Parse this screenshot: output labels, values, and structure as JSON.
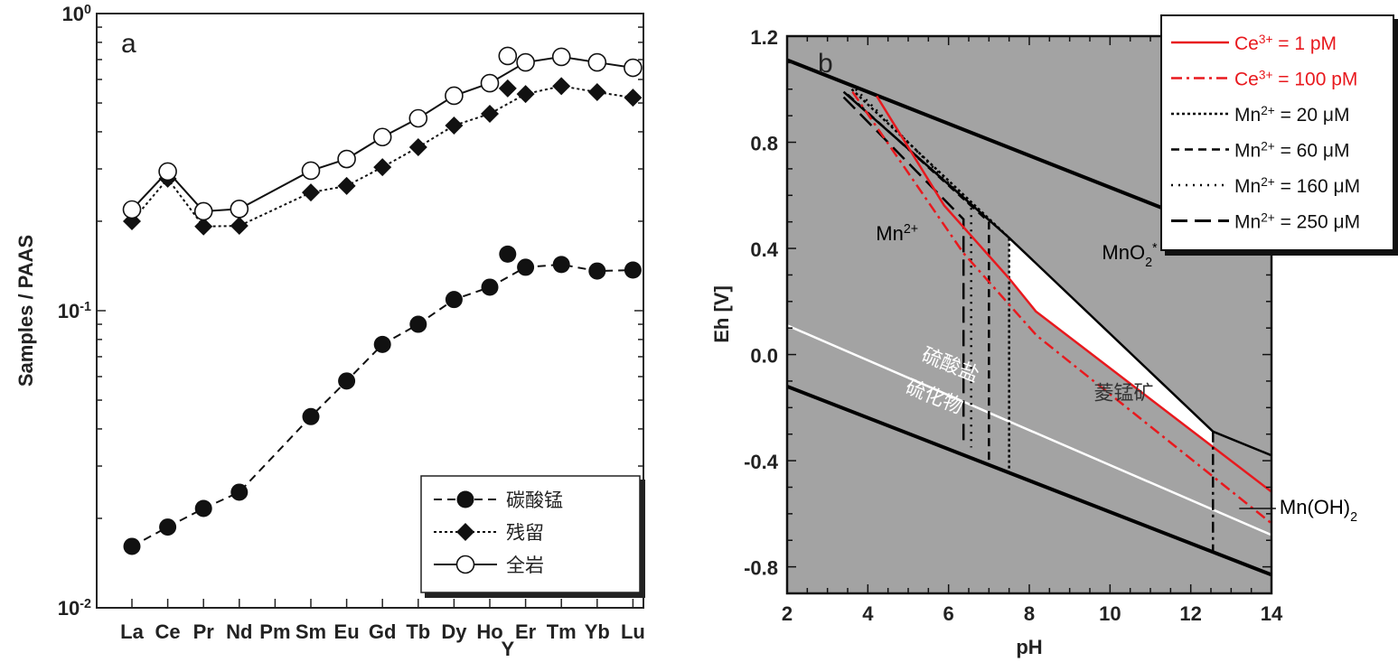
{
  "chart_data": [
    {
      "type": "line",
      "panel_label": "a",
      "ylabel": "Samples / PAAS",
      "xlabel": "",
      "yscale": "log",
      "ylim": [
        0.01,
        1
      ],
      "yticks": [
        {
          "base": "10",
          "exp": "-2",
          "value": 0.01
        },
        {
          "base": "10",
          "exp": "-1",
          "value": 0.1
        },
        {
          "base": "10",
          "exp": "0",
          "value": 1
        }
      ],
      "categories": [
        "La",
        "Ce",
        "Pr",
        "Nd",
        "Pm",
        "Sm",
        "Eu",
        "Gd",
        "Tb",
        "Dy",
        "Ho",
        "Y",
        "Er",
        "Tm",
        "Yb",
        "Lu"
      ],
      "legend_position": "bottom-right",
      "series": [
        {
          "name": "碳酸锰",
          "marker": "filled-circle",
          "line": "dashed",
          "values": [
            0.0161,
            0.0187,
            0.0216,
            0.0245,
            null,
            0.044,
            0.058,
            0.077,
            0.09,
            0.109,
            0.12,
            0.155,
            0.14,
            0.143,
            0.136,
            0.137
          ]
        },
        {
          "name": "残留",
          "marker": "filled-diamond",
          "line": "dotted",
          "values": [
            0.2,
            0.278,
            0.192,
            0.193,
            null,
            0.25,
            0.263,
            0.304,
            0.355,
            0.42,
            0.46,
            0.56,
            0.536,
            0.57,
            0.544,
            0.521
          ]
        },
        {
          "name": "全岩",
          "marker": "open-circle",
          "line": "solid",
          "values": [
            0.219,
            0.294,
            0.216,
            0.22,
            null,
            0.296,
            0.324,
            0.384,
            0.444,
            0.529,
            0.583,
            0.72,
            0.685,
            0.715,
            0.685,
            0.657
          ]
        }
      ]
    },
    {
      "type": "line",
      "panel_label": "b",
      "xlabel": "pH",
      "ylabel": "Eh [V]",
      "xlim": [
        2,
        14
      ],
      "ylim": [
        -0.9,
        1.2
      ],
      "xticks": [
        "2",
        "4",
        "6",
        "8",
        "10",
        "12",
        "14"
      ],
      "yticks": [
        "-0.8",
        "-0.4",
        "0.0",
        "0.4",
        "0.8",
        "1.2"
      ],
      "background_color": "#a3a3a3",
      "legend_position": "top-right",
      "legend": [
        {
          "pre": "Ce",
          "sup": "3+",
          "post": " = 1 pM",
          "color": "#e8191e",
          "dash": "solid"
        },
        {
          "pre": "Ce",
          "sup": "3+",
          "post": " = 100 pM",
          "color": "#e8191e",
          "dash": "dashdot"
        },
        {
          "pre": "Mn",
          "sup": "2+",
          "post": " = 20 μM",
          "color": "#000000",
          "dash": "dotted"
        },
        {
          "pre": "Mn",
          "sup": "2+",
          "post": " = 60 μM",
          "color": "#000000",
          "dash": "dashed"
        },
        {
          "pre": "Mn",
          "sup": "2+",
          "post": " = 160 μM",
          "color": "#000000",
          "dash": "sparse-dotted"
        },
        {
          "pre": "Mn",
          "sup": "2+",
          "post": " = 250 μM",
          "color": "#000000",
          "dash": "long-dash"
        }
      ],
      "lines": [
        {
          "role": "water-upper",
          "color": "#000000",
          "points": [
            [
              2,
              1.11
            ],
            [
              14,
              0.39
            ]
          ]
        },
        {
          "role": "water-lower",
          "color": "#000000",
          "points": [
            [
              2,
              -0.12
            ],
            [
              14,
              -0.83
            ]
          ]
        },
        {
          "role": "sulfate-sulfide",
          "color": "#ffffff",
          "points": [
            [
              2,
              0.11
            ],
            [
              14,
              -0.68
            ]
          ]
        },
        {
          "role": "MnO2-boundary",
          "color": "#000000",
          "points": [
            [
              3.4,
              0.99
            ],
            [
              7.5,
              0.44
            ],
            [
              12.55,
              -0.29
            ],
            [
              14,
              -0.38
            ]
          ]
        },
        {
          "role": "Mn-20uM",
          "color": "#000000",
          "dash": "dotted",
          "points": [
            [
              3.6,
              1.0
            ],
            [
              7.5,
              0.44
            ],
            [
              7.5,
              -0.43
            ]
          ]
        },
        {
          "role": "Mn-60uM",
          "color": "#000000",
          "dash": "dashed",
          "points": [
            [
              3.5,
              0.98
            ],
            [
              7.0,
              0.5
            ],
            [
              7.0,
              -0.41
            ]
          ]
        },
        {
          "role": "Mn-160uM",
          "color": "#000000",
          "dash": "sparse-dotted",
          "points": [
            [
              3.7,
              1.0
            ],
            [
              6.56,
              0.56
            ],
            [
              6.56,
              -0.35
            ]
          ]
        },
        {
          "role": "Mn-250uM",
          "color": "#000000",
          "dash": "long-dash",
          "points": [
            [
              3.4,
              0.97
            ],
            [
              6.37,
              0.51
            ],
            [
              6.37,
              -0.34
            ]
          ]
        },
        {
          "role": "Ce-1pM",
          "color": "#e8191e",
          "dash": "solid",
          "points": [
            [
              4.22,
              0.974
            ],
            [
              5.89,
              0.562
            ],
            [
              7.5,
              0.287
            ],
            [
              8.16,
              0.163
            ],
            [
              14,
              -0.517
            ]
          ]
        },
        {
          "role": "Ce-100pM",
          "color": "#e8191e",
          "dash": "dashdot",
          "points": [
            [
              3.62,
              0.99
            ],
            [
              6.37,
              0.382
            ],
            [
              8.18,
              0.072
            ],
            [
              14,
              -0.636
            ]
          ]
        },
        {
          "role": "MnOH2-boundary",
          "color": "#000000",
          "dash": "dashdot",
          "points": [
            [
              12.55,
              -0.29
            ],
            [
              12.55,
              -0.74
            ]
          ]
        }
      ],
      "white_region": [
        [
          7.5,
          0.44
        ],
        [
          12.55,
          -0.29
        ],
        [
          12.55,
          -0.35
        ],
        [
          8.16,
          0.163
        ],
        [
          7.5,
          0.287
        ]
      ],
      "annotations": [
        {
          "text": "Mn",
          "sup": "2+",
          "x": 4.2,
          "y": 0.43,
          "color": "#000000"
        },
        {
          "text": "MnO",
          "sub": "2",
          "tail": "*",
          "x": 9.8,
          "y": 0.36,
          "color": "#000000"
        },
        {
          "text": "菱锰矿",
          "x": 9.6,
          "y": -0.17,
          "color": "#333333"
        },
        {
          "text": "硫酸盐",
          "x": 5.3,
          "y": -0.02,
          "color": "#ffffff",
          "rotate": true
        },
        {
          "text": "硫化物",
          "x": 4.9,
          "y": -0.14,
          "color": "#ffffff",
          "rotate": true
        },
        {
          "text": "Mn(OH)",
          "sub": "2",
          "x": 14.2,
          "y": -0.6,
          "color": "#000000",
          "leader_from": [
            13.2,
            -0.58
          ]
        }
      ]
    }
  ]
}
